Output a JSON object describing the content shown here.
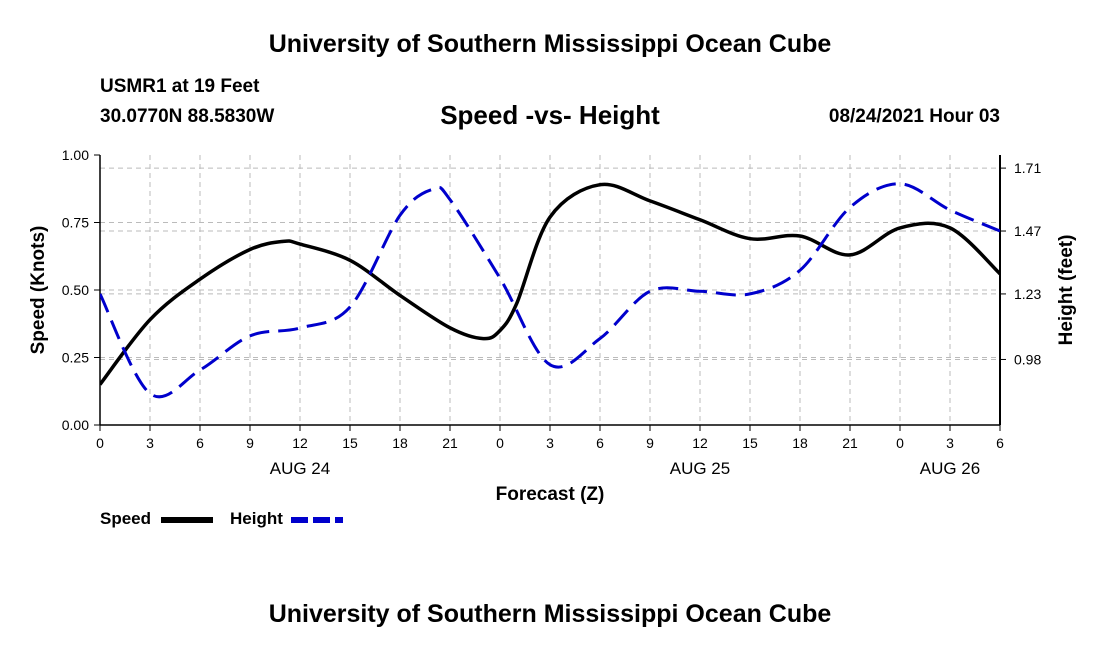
{
  "header": {
    "title": "University of Southern Mississippi Ocean Cube",
    "station": "USMR1 at 19 Feet",
    "coords": "30.0770N  88.5830W",
    "subtitle": "Speed -vs- Height",
    "datetime": "08/24/2021 Hour 03"
  },
  "footer": {
    "title": "University of Southern Mississippi Ocean Cube"
  },
  "legend": {
    "speed_label": "Speed",
    "height_label": "Height"
  },
  "colors": {
    "speed": "#000000",
    "height": "#0000cc",
    "grid": "#bbbbbb"
  },
  "chart_data": {
    "type": "line",
    "title": "Speed -vs- Height",
    "xlabel": "Forecast (Z)",
    "ylabel": "Speed (Knots)",
    "y2label": "Height (feet)",
    "x_range": [
      0,
      54
    ],
    "xticks": [
      0,
      3,
      6,
      9,
      12,
      15,
      18,
      21,
      24,
      27,
      30,
      33,
      36,
      39,
      42,
      45,
      48,
      51,
      54
    ],
    "xtick_labels": [
      "0",
      "3",
      "6",
      "9",
      "12",
      "15",
      "18",
      "21",
      "0",
      "3",
      "6",
      "9",
      "12",
      "15",
      "18",
      "21",
      "0",
      "3",
      "6"
    ],
    "date_labels": [
      {
        "x": 12,
        "label": "AUG 24"
      },
      {
        "x": 36,
        "label": "AUG 25"
      },
      {
        "x": 51,
        "label": "AUG 26"
      }
    ],
    "ylim": [
      0,
      1.0
    ],
    "yticks": [
      0,
      0.25,
      0.5,
      0.75,
      1.0
    ],
    "ytick_labels": [
      "0.00",
      "0.25",
      "0.50",
      "0.75",
      "1.00"
    ],
    "y2lim": [
      0.73,
      1.76
    ],
    "y2ticks": [
      0.98,
      1.23,
      1.47,
      1.71
    ],
    "y2tick_labels": [
      "0.98",
      "1.23",
      "1.47",
      "1.71"
    ],
    "grid": true,
    "legend_position": "bottom-left",
    "series": [
      {
        "name": "Speed",
        "axis": "left",
        "style": "solid",
        "x": [
          0,
          3,
          6,
          9,
          11,
          12,
          15,
          18,
          21,
          23,
          24,
          25,
          27,
          30,
          33,
          36,
          39,
          42,
          45,
          48,
          51,
          54
        ],
        "values": [
          0.15,
          0.39,
          0.54,
          0.65,
          0.68,
          0.67,
          0.61,
          0.48,
          0.36,
          0.32,
          0.35,
          0.45,
          0.77,
          0.89,
          0.83,
          0.76,
          0.69,
          0.7,
          0.63,
          0.73,
          0.73,
          0.56
        ]
      },
      {
        "name": "Height",
        "axis": "right",
        "style": "dashed",
        "x": [
          0,
          3,
          6,
          9,
          12,
          15,
          18,
          20,
          21,
          24,
          27,
          30,
          33,
          36,
          39,
          42,
          45,
          48,
          51,
          54
        ],
        "values": [
          1.23,
          0.85,
          0.94,
          1.07,
          1.1,
          1.18,
          1.53,
          1.63,
          1.59,
          1.29,
          0.96,
          1.06,
          1.24,
          1.24,
          1.23,
          1.32,
          1.56,
          1.65,
          1.55,
          1.47
        ]
      }
    ]
  }
}
